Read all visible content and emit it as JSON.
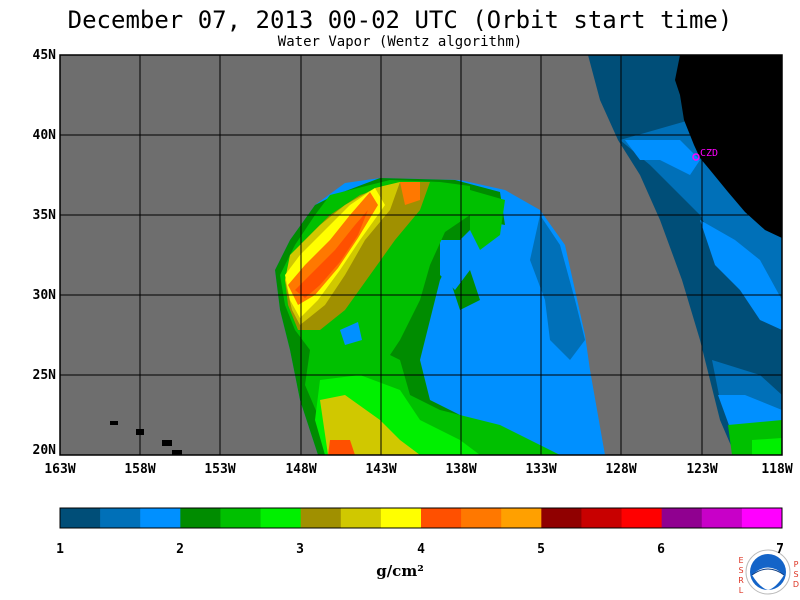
{
  "title": "December 07, 2013  00-02 UTC  (Orbit start time)",
  "subtitle": "Water Vapor (Wentz algorithm)",
  "lat_labels": [
    "45N",
    "40N",
    "35N",
    "30N",
    "25N",
    "20N"
  ],
  "lon_labels": [
    "163W",
    "158W",
    "153W",
    "148W",
    "143W",
    "138W",
    "133W",
    "128W",
    "123W",
    "118W"
  ],
  "station_label": "CZD",
  "colorbar": {
    "ticks": [
      "1",
      "2",
      "3",
      "4",
      "5",
      "6",
      "7"
    ],
    "units": "g/cm²",
    "colors": [
      "#004e78",
      "#0070b8",
      "#0090ff",
      "#008c00",
      "#00c000",
      "#00f000",
      "#a09000",
      "#d0c800",
      "#ffff00",
      "#ff5000",
      "#ff7800",
      "#ffa000",
      "#900000",
      "#c80000",
      "#ff0000",
      "#900090",
      "#c800c8",
      "#ff00ff"
    ]
  },
  "logo": {
    "left_letters": "ESRL",
    "right_letters": "PSD",
    "name": "NOAA"
  },
  "colors": {
    "no_data": "#6e6e6e",
    "land": "#000000",
    "station": "#ff00ff"
  }
}
